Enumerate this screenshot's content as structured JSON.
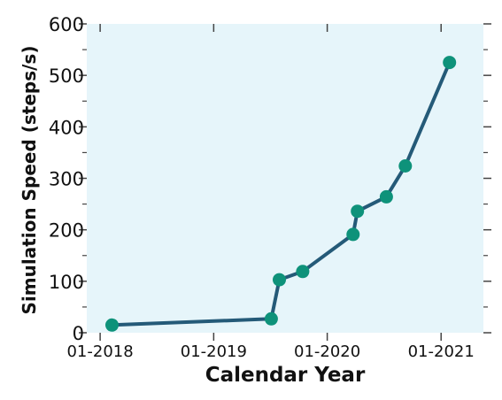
{
  "chart_data": {
    "type": "line",
    "title": "",
    "xlabel": "Calendar Year",
    "ylabel": "Simulation Speed (steps/s)",
    "xlim": [
      "2017-11-19",
      "2021-05-17"
    ],
    "ylim": [
      0,
      600
    ],
    "x_ticks": [
      "2018-01-01",
      "2019-01-01",
      "2020-01-01",
      "2021-01-01"
    ],
    "x_tick_labels": [
      "01-2018",
      "01-2019",
      "01-2020",
      "01-2021"
    ],
    "y_ticks": [
      0,
      100,
      200,
      300,
      400,
      500,
      600
    ],
    "y_tick_labels": [
      "0",
      "100",
      "200",
      "300",
      "400",
      "500",
      "600"
    ],
    "grid": false,
    "legend": "none",
    "series": [
      {
        "x": [
          "2018-02-08",
          "2019-07-05",
          "2019-07-31",
          "2019-10-14",
          "2020-03-24",
          "2020-04-07",
          "2020-07-09",
          "2020-09-08",
          "2021-01-28"
        ],
        "y": [
          15,
          27,
          103,
          119,
          191,
          236,
          264,
          324,
          525
        ]
      }
    ],
    "colors": {
      "background": "#e6f5fa",
      "line": "#245a78",
      "marker": "#0e927a"
    }
  }
}
